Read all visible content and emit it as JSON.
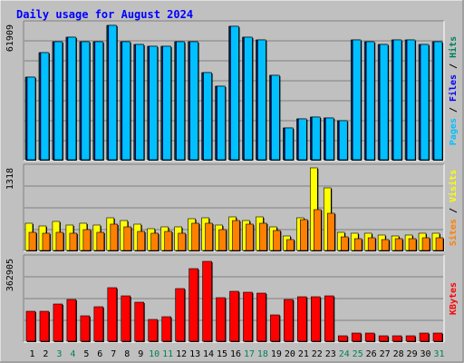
{
  "title": "Daily usage for August 2024",
  "colors": {
    "background": "#c0c0c0",
    "plot_bg": "#c0c0c0",
    "title": "#0000ff",
    "grid": "#808080",
    "hits": "#00805c",
    "files": "#0000ff",
    "pages": "#00c0ff",
    "visits": "#ffff00",
    "sites": "#ff8000",
    "kbytes": "#ff0000",
    "weekday_label": "#000000",
    "weekend_label": "#00805c"
  },
  "chart_data": [
    {
      "type": "bar",
      "panel": "hits-files-pages",
      "ymax_label": "61909",
      "ylim": [
        0,
        61909
      ],
      "grid": true,
      "legend": [
        "Pages",
        "Files",
        "Hits"
      ],
      "series": [
        {
          "name": "Hits",
          "values": [
            38000,
            49000,
            54000,
            56000,
            54000,
            54000,
            61500,
            54000,
            53000,
            52000,
            52000,
            54000,
            54000,
            40000,
            34000,
            61000,
            56000,
            55000,
            39000,
            15000,
            19000,
            20000,
            19500,
            18000,
            55000,
            54000,
            53000,
            55000,
            55000,
            53000,
            54000
          ]
        },
        {
          "name": "Files",
          "values": [
            38000,
            49000,
            54000,
            56000,
            54000,
            54000,
            61500,
            54000,
            53000,
            52000,
            52000,
            54000,
            54000,
            40000,
            34000,
            61000,
            56000,
            55000,
            39000,
            15000,
            19000,
            20000,
            19500,
            18000,
            55000,
            54000,
            53000,
            55000,
            55000,
            53000,
            54000
          ]
        },
        {
          "name": "Pages",
          "values": [
            38000,
            49000,
            54000,
            56000,
            54000,
            54000,
            61500,
            54000,
            53000,
            52000,
            52000,
            54000,
            54000,
            40000,
            34000,
            61000,
            56000,
            55000,
            39000,
            15000,
            19000,
            20000,
            19500,
            18000,
            55000,
            54000,
            53000,
            55000,
            55000,
            53000,
            54000
          ]
        }
      ]
    },
    {
      "type": "bar",
      "panel": "visits-sites",
      "ymax_label": "1318",
      "ylim": [
        0,
        1318
      ],
      "grid": true,
      "legend": [
        "Sites",
        "Visits"
      ],
      "series": [
        {
          "name": "Visits",
          "values": [
            440,
            400,
            470,
            420,
            450,
            410,
            530,
            480,
            430,
            360,
            390,
            380,
            520,
            530,
            410,
            550,
            490,
            540,
            390,
            250,
            530,
            1320,
            1000,
            300,
            280,
            280,
            260,
            250,
            260,
            290,
            280
          ]
        },
        {
          "name": "Sites",
          "values": [
            300,
            280,
            300,
            290,
            340,
            300,
            430,
            380,
            320,
            280,
            310,
            290,
            450,
            440,
            340,
            480,
            430,
            450,
            330,
            180,
            500,
            660,
            600,
            230,
            200,
            220,
            190,
            200,
            200,
            220,
            210
          ]
        }
      ]
    },
    {
      "type": "bar",
      "panel": "kbytes",
      "ymax_label": "362905",
      "ylim": [
        0,
        362905
      ],
      "grid": true,
      "legend": [
        "KBytes"
      ],
      "series": [
        {
          "name": "KBytes",
          "values": [
            133000,
            133000,
            165000,
            185000,
            115000,
            153000,
            235000,
            200000,
            173000,
            100000,
            110000,
            232000,
            320000,
            353000,
            195000,
            222000,
            215000,
            213000,
            120000,
            185000,
            198000,
            198000,
            202000,
            27000,
            38000,
            40000,
            28000,
            27000,
            27000,
            40000,
            38000
          ]
        }
      ]
    }
  ],
  "days": [
    "1",
    "2",
    "3",
    "4",
    "5",
    "6",
    "7",
    "8",
    "9",
    "10",
    "11",
    "12",
    "13",
    "14",
    "15",
    "16",
    "17",
    "18",
    "19",
    "20",
    "21",
    "22",
    "23",
    "24",
    "25",
    "26",
    "27",
    "28",
    "29",
    "30",
    "31"
  ],
  "weekend_days": [
    3,
    4,
    10,
    11,
    17,
    18,
    24,
    25,
    31
  ]
}
